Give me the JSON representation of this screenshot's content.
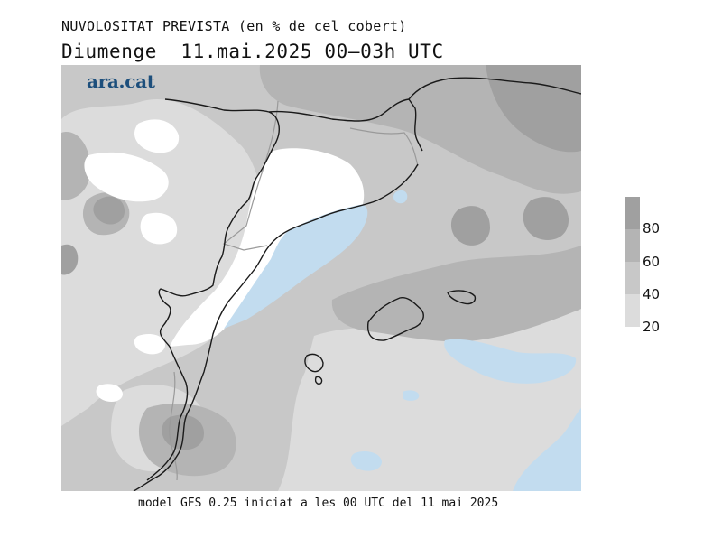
{
  "title_line1": "NUVOLOSITAT PREVISTA (en % de cel cobert)",
  "title_line2": "Diumenge  11.mai.2025 00–03h UTC",
  "logo_text": "ara.cat",
  "footer_text": "model GFS 0.25 iniciat a les 00 UTC del 11 mai 2025",
  "legend": {
    "bins": [
      {
        "label": "80",
        "color": "#a0a0a0"
      },
      {
        "label": "60",
        "color": "#b4b4b4"
      },
      {
        "label": "40",
        "color": "#c8c8c8"
      },
      {
        "label": "20",
        "color": "#dcdcdc"
      }
    ]
  },
  "colors": {
    "clear": "#ffffff",
    "c20": "#dcdcdc",
    "c40": "#c8c8c8",
    "c60": "#b4b4b4",
    "c80": "#a0a0a0",
    "sea_clear": "#c2dcef",
    "coast": "#1a1a1a",
    "admin_border": "#9a9a9a",
    "brand": "#1d4f7c"
  }
}
